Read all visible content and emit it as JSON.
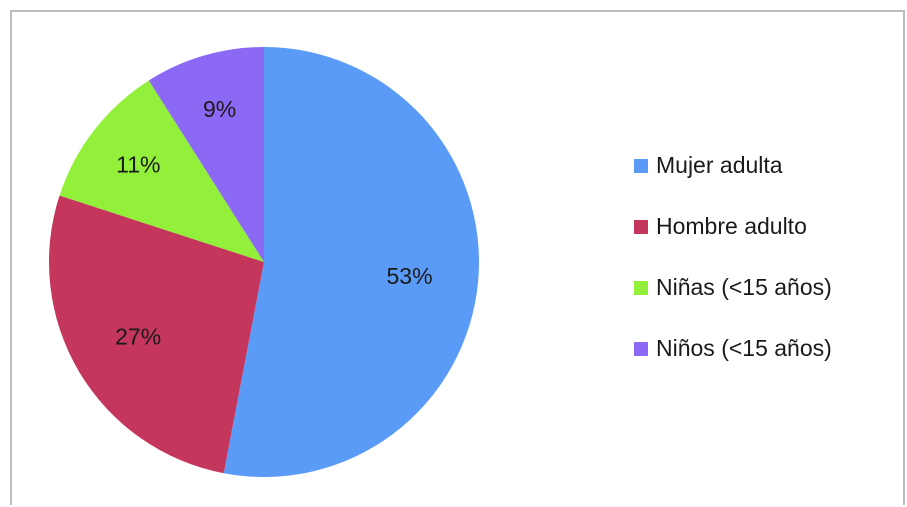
{
  "chart_data": {
    "type": "pie",
    "title": "",
    "categories": [
      "Mujer adulta",
      "Hombre adulto",
      "Niñas (<15 años)",
      "Niños (<15 años)"
    ],
    "values": [
      53,
      27,
      11,
      9
    ],
    "data_labels": [
      "53%",
      "27%",
      "11%",
      "9%"
    ],
    "colors": [
      "#5B9BF8",
      "#C4365C",
      "#92F03A",
      "#8B69F5"
    ],
    "start_angle_deg": 0,
    "direction": "clockwise",
    "legend_position": "right"
  },
  "legend": {
    "items": [
      {
        "label": "Mujer adulta",
        "color": "#5B9BF8"
      },
      {
        "label": "Hombre adulto",
        "color": "#C4365C"
      },
      {
        "label": "Niñas (<15 años)",
        "color": "#92F03A"
      },
      {
        "label": "Niños (<15 años)",
        "color": "#8B69F5"
      }
    ]
  }
}
